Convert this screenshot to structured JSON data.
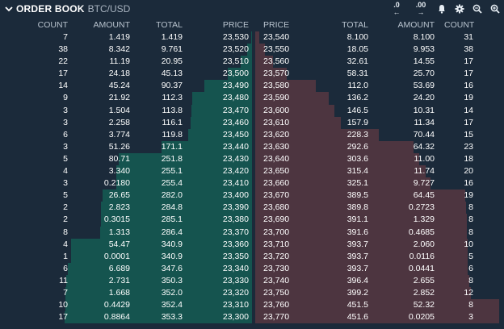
{
  "header": {
    "title": "ORDER BOOK",
    "pair": "BTC/USD",
    "decrease_precision": ".0",
    "increase_precision": ".00"
  },
  "bids_header": {
    "count": "COUNT",
    "amount": "AMOUNT",
    "total": "TOTAL",
    "price": "PRICE"
  },
  "asks_header": {
    "price": "PRICE",
    "total": "TOTAL",
    "amount": "AMOUNT",
    "count": "COUNT"
  },
  "rows": [
    {
      "bid": {
        "count": "7",
        "amount": "1.419",
        "total": "1.419",
        "price": "23,530"
      },
      "ask": {
        "price": "23,540",
        "total": "8.100",
        "amount": "8.100",
        "count": "31"
      }
    },
    {
      "bid": {
        "count": "38",
        "amount": "8.342",
        "total": "9.761",
        "price": "23,520"
      },
      "ask": {
        "price": "23,550",
        "total": "18.05",
        "amount": "9.953",
        "count": "38"
      }
    },
    {
      "bid": {
        "count": "22",
        "amount": "11.19",
        "total": "20.95",
        "price": "23,510"
      },
      "ask": {
        "price": "23,560",
        "total": "32.61",
        "amount": "14.55",
        "count": "17"
      }
    },
    {
      "bid": {
        "count": "17",
        "amount": "24.18",
        "total": "45.13",
        "price": "23,500"
      },
      "ask": {
        "price": "23,570",
        "total": "58.31",
        "amount": "25.70",
        "count": "17"
      }
    },
    {
      "bid": {
        "count": "14",
        "amount": "45.24",
        "total": "90.37",
        "price": "23,490"
      },
      "ask": {
        "price": "23,580",
        "total": "112.0",
        "amount": "53.69",
        "count": "16"
      }
    },
    {
      "bid": {
        "count": "9",
        "amount": "21.92",
        "total": "112.3",
        "price": "23,480"
      },
      "ask": {
        "price": "23,590",
        "total": "136.2",
        "amount": "24.20",
        "count": "19"
      }
    },
    {
      "bid": {
        "count": "3",
        "amount": "1.504",
        "total": "113.8",
        "price": "23,470"
      },
      "ask": {
        "price": "23,600",
        "total": "146.5",
        "amount": "10.31",
        "count": "14"
      }
    },
    {
      "bid": {
        "count": "3",
        "amount": "2.258",
        "total": "116.1",
        "price": "23,460"
      },
      "ask": {
        "price": "23,610",
        "total": "157.9",
        "amount": "11.34",
        "count": "17"
      }
    },
    {
      "bid": {
        "count": "6",
        "amount": "3.774",
        "total": "119.8",
        "price": "23,450"
      },
      "ask": {
        "price": "23,620",
        "total": "228.3",
        "amount": "70.44",
        "count": "15"
      }
    },
    {
      "bid": {
        "count": "3",
        "amount": "51.26",
        "total": "171.1",
        "price": "23,440"
      },
      "ask": {
        "price": "23,630",
        "total": "292.6",
        "amount": "64.32",
        "count": "23"
      }
    },
    {
      "bid": {
        "count": "5",
        "amount": "80.71",
        "total": "251.8",
        "price": "23,430"
      },
      "ask": {
        "price": "23,640",
        "total": "303.6",
        "amount": "11.00",
        "count": "18"
      }
    },
    {
      "bid": {
        "count": "4",
        "amount": "3.340",
        "total": "255.1",
        "price": "23,420"
      },
      "ask": {
        "price": "23,650",
        "total": "315.4",
        "amount": "11.74",
        "count": "20"
      }
    },
    {
      "bid": {
        "count": "3",
        "amount": "0.2180",
        "total": "255.4",
        "price": "23,410"
      },
      "ask": {
        "price": "23,660",
        "total": "325.1",
        "amount": "9.727",
        "count": "16"
      }
    },
    {
      "bid": {
        "count": "5",
        "amount": "26.65",
        "total": "282.0",
        "price": "23,400"
      },
      "ask": {
        "price": "23,670",
        "total": "389.5",
        "amount": "64.45",
        "count": "19"
      }
    },
    {
      "bid": {
        "count": "2",
        "amount": "2.823",
        "total": "284.8",
        "price": "23,390"
      },
      "ask": {
        "price": "23,680",
        "total": "389.8",
        "amount": "0.2723",
        "count": "8"
      }
    },
    {
      "bid": {
        "count": "2",
        "amount": "0.3015",
        "total": "285.1",
        "price": "23,380"
      },
      "ask": {
        "price": "23,690",
        "total": "391.1",
        "amount": "1.329",
        "count": "8"
      }
    },
    {
      "bid": {
        "count": "8",
        "amount": "1.313",
        "total": "286.4",
        "price": "23,370"
      },
      "ask": {
        "price": "23,700",
        "total": "391.6",
        "amount": "0.4685",
        "count": "8"
      }
    },
    {
      "bid": {
        "count": "4",
        "amount": "54.47",
        "total": "340.9",
        "price": "23,360"
      },
      "ask": {
        "price": "23,710",
        "total": "393.7",
        "amount": "2.060",
        "count": "10"
      }
    },
    {
      "bid": {
        "count": "1",
        "amount": "0.0001",
        "total": "340.9",
        "price": "23,350"
      },
      "ask": {
        "price": "23,720",
        "total": "393.7",
        "amount": "0.0116",
        "count": "5"
      }
    },
    {
      "bid": {
        "count": "6",
        "amount": "6.689",
        "total": "347.6",
        "price": "23,340"
      },
      "ask": {
        "price": "23,730",
        "total": "393.7",
        "amount": "0.0441",
        "count": "6"
      }
    },
    {
      "bid": {
        "count": "11",
        "amount": "2.731",
        "total": "350.3",
        "price": "23,330"
      },
      "ask": {
        "price": "23,740",
        "total": "396.4",
        "amount": "2.655",
        "count": "8"
      }
    },
    {
      "bid": {
        "count": "7",
        "amount": "1.668",
        "total": "352.0",
        "price": "23,320"
      },
      "ask": {
        "price": "23,750",
        "total": "399.2",
        "amount": "2.852",
        "count": "12"
      }
    },
    {
      "bid": {
        "count": "10",
        "amount": "0.4429",
        "total": "352.4",
        "price": "23,310"
      },
      "ask": {
        "price": "23,760",
        "total": "451.5",
        "amount": "52.32",
        "count": "8"
      }
    },
    {
      "bid": {
        "count": "17",
        "amount": "0.8864",
        "total": "353.3",
        "price": "23,300"
      },
      "ask": {
        "price": "23,770",
        "total": "451.6",
        "amount": "0.0205",
        "count": "3"
      }
    }
  ]
}
